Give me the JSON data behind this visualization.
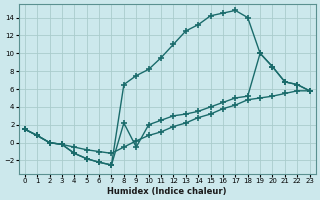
{
  "xlabel": "Humidex (Indice chaleur)",
  "bg_color": "#cce8ec",
  "grid_color": "#aacccc",
  "line_color": "#1a6b6b",
  "xlim": [
    -0.5,
    23.5
  ],
  "ylim": [
    -3.5,
    15.5
  ],
  "xticks": [
    0,
    1,
    2,
    3,
    4,
    5,
    6,
    7,
    8,
    9,
    10,
    11,
    12,
    13,
    14,
    15,
    16,
    17,
    18,
    19,
    20,
    21,
    22,
    23
  ],
  "yticks": [
    -2,
    0,
    2,
    4,
    6,
    8,
    10,
    12,
    14
  ],
  "line_upper_x": [
    0,
    1,
    2,
    3,
    4,
    5,
    6,
    7,
    8,
    9,
    10,
    11,
    12,
    13,
    14,
    15,
    16,
    17,
    18,
    19,
    20,
    21,
    22,
    23
  ],
  "line_upper_y": [
    1.5,
    0.8,
    0.0,
    -0.2,
    -1.2,
    -1.8,
    -2.2,
    -2.5,
    6.5,
    7.5,
    8.2,
    9.5,
    11.0,
    12.5,
    13.2,
    14.2,
    14.5,
    14.8,
    14.0,
    10.0,
    8.5,
    6.8,
    6.5,
    5.8
  ],
  "line_bottom_x": [
    0,
    1,
    2,
    3,
    4,
    5,
    6,
    7,
    8,
    9,
    10,
    11,
    12,
    13,
    14,
    15,
    16,
    17,
    18,
    19,
    20,
    21,
    22,
    23
  ],
  "line_bottom_y": [
    1.5,
    0.8,
    0.0,
    -0.2,
    -0.5,
    -0.8,
    -1.0,
    -1.2,
    -0.5,
    0.2,
    0.8,
    1.2,
    1.8,
    2.2,
    2.8,
    3.2,
    3.8,
    4.2,
    4.8,
    5.0,
    5.2,
    5.5,
    5.8,
    5.8
  ],
  "line_mid_x": [
    0,
    1,
    2,
    3,
    4,
    5,
    6,
    7,
    8,
    9,
    10,
    11,
    12,
    13,
    14,
    15,
    16,
    17,
    18,
    19,
    20,
    21,
    22,
    23
  ],
  "line_mid_y": [
    1.5,
    0.8,
    0.0,
    -0.2,
    -1.2,
    -1.8,
    -2.2,
    -2.5,
    2.2,
    -0.5,
    2.0,
    2.5,
    3.0,
    3.2,
    3.5,
    4.0,
    4.5,
    5.0,
    5.2,
    10.0,
    8.5,
    6.8,
    6.5,
    5.8
  ]
}
